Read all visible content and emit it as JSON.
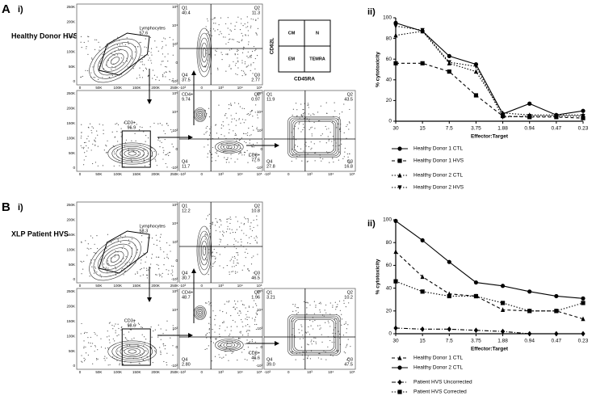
{
  "panels": [
    {
      "letter": "A",
      "left_label": "i)",
      "right_label": "ii)",
      "sample": "Healthy Donor HVS",
      "phenotype_key": {
        "cells": [
          "CM",
          "N",
          "EM",
          "TEMRA"
        ],
        "y_axis": "CD62L",
        "x_axis": "CD45RA"
      },
      "plots": [
        {
          "gate_name": "Lymphocytes",
          "gate_value": "57.6"
        },
        {
          "q1": [
            "Q1",
            "40.4"
          ],
          "q2": [
            "Q2",
            "11.3"
          ],
          "q4": [
            "Q4",
            "37.5"
          ],
          "q3": [
            "Q3",
            "2.77"
          ]
        },
        {
          "gate_name": "CD3+",
          "gate_value": "96.9"
        },
        {
          "q1": [
            "CD4+",
            "9.74"
          ],
          "q2": [
            "Q2",
            "0.97"
          ],
          "q4": [
            "Q4",
            "11.7"
          ],
          "q3": [
            "CD8+",
            "77.6"
          ]
        },
        {
          "q1": [
            "Q1",
            "11.9"
          ],
          "q2": [
            "Q2",
            "43.5"
          ],
          "q4": [
            "Q4",
            "27.8"
          ],
          "q3": [
            "Q3",
            "16.8"
          ]
        }
      ]
    },
    {
      "letter": "B",
      "left_label": "i)",
      "right_label": "ii)",
      "sample": "XLP Patient HVS",
      "plots": [
        {
          "gate_name": "Lymphocytes",
          "gate_value": "58.3"
        },
        {
          "q1": [
            "Q1",
            "12.2"
          ],
          "q2": [
            "Q2",
            "10.8"
          ],
          "q4": [
            "Q4",
            "30.7"
          ],
          "q3": [
            "Q3",
            "46.5"
          ]
        },
        {
          "gate_name": "CD3+",
          "gate_value": "98.6"
        },
        {
          "q1": [
            "CD4+",
            "48.7"
          ],
          "q2": [
            "Q2",
            "1.96"
          ],
          "q4": [
            "Q4",
            "2.80"
          ],
          "q3": [
            "CD8+",
            "46.6"
          ]
        },
        {
          "q1": [
            "Q1",
            "3.21"
          ],
          "q2": [
            "Q2",
            "10.2"
          ],
          "q4": [
            "Q4",
            "39.0"
          ],
          "q3": [
            "Q3",
            "47.5"
          ]
        }
      ]
    }
  ],
  "flow_axes": {
    "linear_y": [
      "250K",
      "200K",
      "150K",
      "100K",
      "50K",
      "0"
    ],
    "linear_x": [
      "0",
      "50K",
      "100K",
      "150K",
      "200K",
      "250K"
    ],
    "log_y": [
      "10⁵",
      "10⁴",
      "10³",
      "0",
      "-10³"
    ],
    "log_x": [
      "-10³",
      "0",
      "10³",
      "10⁴",
      "10⁵"
    ]
  },
  "chart_data": [
    {
      "type": "line",
      "y_label": "% cytotoxicity",
      "x_label": "Effector:Target",
      "categories": [
        "30",
        "15",
        "7.5",
        "3.75",
        "1.88",
        "0.94",
        "0.47",
        "0.23"
      ],
      "ylim": [
        0,
        100
      ],
      "yticks": [
        0,
        20,
        40,
        60,
        80,
        100
      ],
      "series": [
        {
          "name": "Healthy Donor 1 CTL",
          "color": "#000000",
          "marker": "circle",
          "dash": "solid",
          "values": [
            95,
            87,
            63,
            55,
            7,
            17,
            6,
            10
          ]
        },
        {
          "name": "Healthy Donor 1 HVS",
          "color": "#000000",
          "marker": "square",
          "dash": "dashed",
          "values": [
            56,
            56,
            48,
            25,
            5,
            4,
            4,
            3
          ]
        },
        {
          "name": "Healthy Donor 2 CTL",
          "color": "#000000",
          "marker": "triangle",
          "dash": "dotted",
          "values": [
            83,
            87,
            56,
            48,
            8,
            6,
            6,
            6
          ]
        },
        {
          "name": "Healthy Donor 2 HVS",
          "color": "#000000",
          "marker": "triangle-down",
          "dash": "dotted",
          "values": [
            92,
            88,
            57,
            53,
            4,
            5,
            5,
            5
          ]
        }
      ]
    },
    {
      "type": "line",
      "y_label": "% cytotoxicity",
      "x_label": "Effector:Target",
      "categories": [
        "30",
        "15",
        "7.5",
        "3.75",
        "1.88",
        "0.94",
        "0.47",
        "0.23"
      ],
      "ylim": [
        0,
        100
      ],
      "yticks": [
        0,
        20,
        40,
        60,
        80,
        100
      ],
      "series": [
        {
          "name": "Healthy Donor 1 CTL",
          "color": "#000000",
          "marker": "triangle",
          "dash": "dashed",
          "values": [
            72,
            50,
            35,
            33,
            21,
            20,
            20,
            13
          ]
        },
        {
          "name": "Healthy Donor 2 CTL",
          "color": "#000000",
          "marker": "circle",
          "dash": "solid",
          "values": [
            99,
            82,
            63,
            45,
            42,
            37,
            33,
            31
          ]
        },
        {
          "name": "Patient HVS Uncorrected",
          "color": "#000000",
          "marker": "diamond",
          "dash": "dashdot",
          "values": [
            5,
            4,
            4,
            3,
            2,
            0,
            0,
            0
          ]
        },
        {
          "name": "Patient HVS Corrected",
          "color": "#000000",
          "marker": "square",
          "dash": "dotted",
          "values": [
            46,
            37,
            33,
            33,
            27,
            20,
            20,
            27
          ]
        }
      ]
    }
  ]
}
